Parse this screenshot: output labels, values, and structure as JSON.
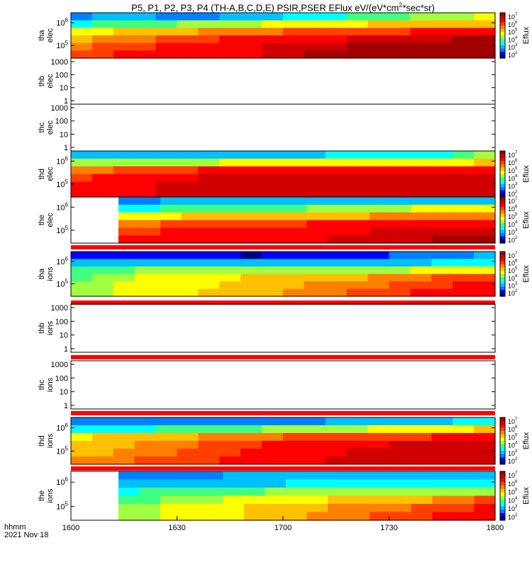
{
  "figure": {
    "title": "P5, P1, P2, P3, P4 (TH-A,B,C,D,E) PSIR,PSER EFlux eV/(eV*cm",
    "title_sup": "2",
    "title_tail": "*sec*sr)",
    "time_label": "hhmm",
    "date_label": "2021 Nov 18"
  },
  "chart_data": {
    "type": "heatmap",
    "x_ticks": [
      "1600",
      "1630",
      "1700",
      "1730",
      "1800"
    ],
    "x_range": [
      "16:00",
      "18:00"
    ],
    "colorbar": {
      "label": "Eflux",
      "ticks": [
        "10^7",
        "10^6",
        "10^5",
        "10^4",
        "10^3",
        "10^2"
      ],
      "scale": "log",
      "range": [
        100,
        10000000
      ]
    },
    "colors": {
      "c0": "#00008b",
      "c1": "#0000ff",
      "c2": "#0080ff",
      "c3": "#00c0ff",
      "c4": "#00ffff",
      "c5": "#40ff80",
      "c6": "#a0ff40",
      "c7": "#ffff00",
      "c8": "#ffc000",
      "c9": "#ff8000",
      "c10": "#ff4000",
      "c11": "#ff0000",
      "c12": "#d00000",
      "c13": "#a00000",
      "flag": "#ff0000"
    },
    "panels": [
      {
        "label1": "tha",
        "label2": "elec",
        "y_ticks": [
          "10^6",
          "10^5"
        ],
        "colorbar": true,
        "grid": [
          [
            2,
            3,
            3,
            3,
            2,
            2,
            2,
            3,
            3,
            3,
            4,
            4,
            4,
            5,
            5,
            5,
            6,
            6,
            6,
            7
          ],
          [
            4,
            5,
            5,
            5,
            5,
            6,
            6,
            6,
            6,
            7,
            7,
            7,
            7,
            7,
            8,
            8,
            8,
            8,
            8,
            8
          ],
          [
            7,
            7,
            8,
            8,
            8,
            8,
            9,
            9,
            9,
            9,
            10,
            10,
            10,
            10,
            10,
            10,
            11,
            11,
            11,
            11
          ],
          [
            8,
            9,
            9,
            9,
            10,
            10,
            10,
            11,
            11,
            11,
            11,
            11,
            11,
            12,
            12,
            12,
            12,
            12,
            13,
            13
          ],
          [
            9,
            10,
            10,
            10,
            11,
            11,
            11,
            11,
            11,
            12,
            12,
            12,
            12,
            13,
            13,
            13,
            13,
            13,
            13,
            13
          ],
          [
            10,
            10,
            11,
            11,
            11,
            11,
            11,
            11,
            11,
            12,
            12,
            13,
            13,
            13,
            13,
            13,
            13,
            13,
            13,
            13
          ]
        ]
      },
      {
        "label1": "thb",
        "label2": "elec",
        "y_ticks": [
          "1000",
          "100",
          "10",
          "1"
        ],
        "empty": true
      },
      {
        "label1": "thc",
        "label2": "elec",
        "y_ticks": [
          "1000",
          "100",
          "10",
          "1"
        ],
        "empty": true
      },
      {
        "label1": "thd",
        "label2": "elec",
        "y_ticks": [
          "10^6",
          "10^5"
        ],
        "colorbar": true,
        "grid": [
          [
            3,
            3,
            3,
            3,
            3,
            3,
            3,
            3,
            3,
            3,
            3,
            3,
            4,
            4,
            4,
            4,
            4,
            4,
            5,
            6
          ],
          [
            6,
            6,
            6,
            6,
            6,
            6,
            6,
            7,
            7,
            7,
            7,
            7,
            7,
            7,
            7,
            7,
            7,
            7,
            7,
            8
          ],
          [
            9,
            9,
            10,
            10,
            10,
            10,
            11,
            11,
            11,
            11,
            11,
            11,
            11,
            11,
            11,
            11,
            11,
            11,
            11,
            11
          ],
          [
            10,
            11,
            11,
            11,
            11,
            11,
            12,
            12,
            12,
            12,
            12,
            12,
            12,
            12,
            12,
            12,
            12,
            12,
            12,
            12
          ],
          [
            11,
            11,
            11,
            11,
            12,
            12,
            12,
            12,
            12,
            12,
            12,
            12,
            12,
            12,
            12,
            12,
            12,
            12,
            12,
            12
          ],
          [
            11,
            11,
            11,
            11,
            12,
            12,
            12,
            12,
            12,
            12,
            12,
            12,
            12,
            12,
            12,
            12,
            12,
            12,
            12,
            12
          ]
        ]
      },
      {
        "label1": "the",
        "label2": "elec",
        "y_ticks": [
          "10^6",
          "10^5"
        ],
        "colorbar": true,
        "start_frac": 0.112,
        "flag": true,
        "grid": [
          [
            2,
            2,
            3,
            3,
            3,
            3,
            3,
            3,
            3,
            3,
            3,
            3,
            3,
            3,
            3,
            3,
            3,
            3
          ],
          [
            4,
            4,
            5,
            5,
            5,
            5,
            5,
            5,
            5,
            6,
            6,
            6,
            6,
            6,
            7,
            7,
            7,
            7
          ],
          [
            7,
            7,
            7,
            8,
            8,
            8,
            8,
            8,
            8,
            8,
            8,
            8,
            9,
            9,
            9,
            9,
            9,
            9
          ],
          [
            9,
            9,
            10,
            10,
            10,
            10,
            10,
            10,
            10,
            11,
            11,
            11,
            11,
            11,
            11,
            11,
            11,
            11
          ],
          [
            10,
            10,
            11,
            11,
            11,
            11,
            11,
            11,
            11,
            11,
            11,
            11,
            12,
            12,
            12,
            12,
            12,
            12
          ],
          [
            11,
            11,
            11,
            11,
            11,
            11,
            11,
            11,
            11,
            11,
            12,
            12,
            12,
            12,
            12,
            13,
            13,
            13
          ]
        ]
      },
      {
        "label1": "tha",
        "label2": "ions",
        "y_ticks": [
          "10^6",
          "10^5"
        ],
        "colorbar": true,
        "flag": true,
        "grid": [
          [
            1,
            1,
            1,
            1,
            1,
            1,
            1,
            1,
            0,
            1,
            1,
            1,
            1,
            1,
            1,
            2,
            2,
            2,
            2,
            3
          ],
          [
            3,
            3,
            3,
            3,
            3,
            3,
            3,
            3,
            3,
            3,
            3,
            3,
            3,
            3,
            3,
            3,
            3,
            4,
            4,
            4
          ],
          [
            5,
            5,
            5,
            6,
            6,
            6,
            6,
            6,
            6,
            6,
            6,
            6,
            6,
            6,
            6,
            6,
            7,
            7,
            7,
            7
          ],
          [
            5,
            6,
            6,
            7,
            7,
            7,
            7,
            7,
            8,
            8,
            8,
            8,
            8,
            8,
            9,
            9,
            9,
            10,
            10,
            10
          ],
          [
            6,
            6,
            7,
            7,
            7,
            7,
            7,
            8,
            8,
            8,
            8,
            9,
            9,
            9,
            9,
            10,
            10,
            10,
            11,
            11
          ],
          [
            6,
            6,
            7,
            7,
            7,
            7,
            8,
            8,
            8,
            8,
            9,
            9,
            9,
            10,
            10,
            10,
            11,
            11,
            11,
            11
          ]
        ]
      },
      {
        "label1": "thb",
        "label2": "ions",
        "y_ticks": [
          "1000",
          "100",
          "10",
          "1"
        ],
        "empty": true,
        "flag": true
      },
      {
        "label1": "thc",
        "label2": "ions",
        "y_ticks": [
          "1000",
          "100",
          "10",
          "1"
        ],
        "empty": true,
        "flag": true
      },
      {
        "label1": "thd",
        "label2": "ions",
        "y_ticks": [
          "10^6",
          "10^5"
        ],
        "colorbar": true,
        "flag": true,
        "grid": [
          [
            2,
            2,
            2,
            2,
            2,
            2,
            2,
            2,
            2,
            2,
            2,
            2,
            3,
            3,
            3,
            3,
            3,
            3,
            4,
            4
          ],
          [
            4,
            4,
            4,
            4,
            5,
            5,
            5,
            5,
            5,
            6,
            6,
            6,
            6,
            6,
            7,
            7,
            7,
            7,
            7,
            8
          ],
          [
            7,
            8,
            8,
            8,
            8,
            8,
            9,
            9,
            9,
            9,
            10,
            10,
            10,
            10,
            10,
            10,
            10,
            11,
            11,
            11
          ],
          [
            8,
            8,
            8,
            9,
            9,
            9,
            10,
            10,
            10,
            11,
            11,
            11,
            11,
            11,
            11,
            12,
            12,
            12,
            12,
            12
          ],
          [
            8,
            8,
            9,
            9,
            9,
            10,
            10,
            10,
            11,
            11,
            11,
            11,
            11,
            12,
            12,
            12,
            12,
            12,
            12,
            12
          ],
          [
            9,
            9,
            9,
            10,
            10,
            10,
            10,
            11,
            11,
            11,
            11,
            11,
            12,
            12,
            12,
            12,
            12,
            12,
            12,
            12
          ]
        ]
      },
      {
        "label1": "the",
        "label2": "ions",
        "y_ticks": [
          "10^6",
          "10^5"
        ],
        "colorbar": true,
        "start_frac": 0.112,
        "grid": [
          [
            2,
            2,
            2,
            2,
            2,
            3,
            3,
            3,
            3,
            3,
            3,
            3,
            3,
            3,
            3,
            3,
            3,
            3
          ],
          [
            3,
            3,
            3,
            3,
            3,
            3,
            3,
            3,
            4,
            4,
            4,
            4,
            4,
            4,
            4,
            4,
            4,
            4
          ],
          [
            4,
            5,
            5,
            5,
            5,
            5,
            5,
            6,
            6,
            6,
            6,
            6,
            6,
            6,
            6,
            6,
            6,
            6
          ],
          [
            5,
            5,
            6,
            6,
            6,
            7,
            7,
            7,
            7,
            7,
            8,
            8,
            8,
            8,
            8,
            9,
            9,
            10
          ],
          [
            6,
            6,
            7,
            7,
            7,
            7,
            8,
            8,
            8,
            8,
            9,
            9,
            9,
            9,
            10,
            10,
            10,
            11
          ],
          [
            6,
            6,
            7,
            7,
            7,
            7,
            8,
            8,
            8,
            9,
            9,
            9,
            10,
            10,
            10,
            11,
            11,
            11
          ]
        ]
      }
    ]
  }
}
